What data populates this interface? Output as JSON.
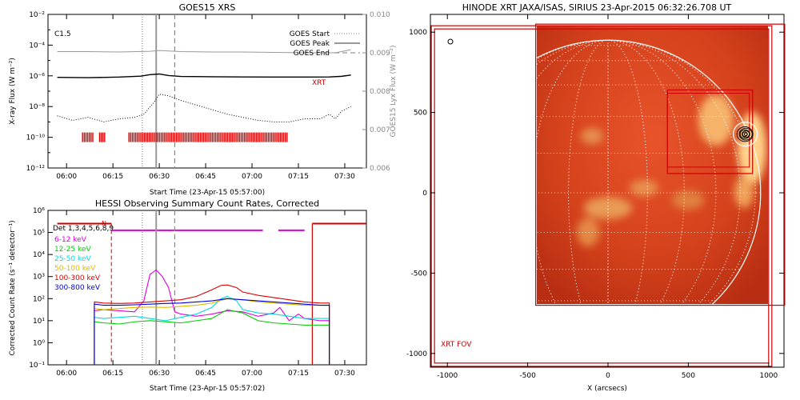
{
  "chart_data": [
    {
      "type": "line",
      "title": "GOES15 XRS",
      "xlabel": "Start Time (23-Apr-15 05:57:00)",
      "ylabel": "X-ray Flux (W m⁻²)",
      "ylabel_right": "GOES15 Lyx Flux (W m⁻²)",
      "x_ticks": [
        "06:00",
        "06:15",
        "06:30",
        "06:45",
        "07:00",
        "07:15",
        "07:30"
      ],
      "y_ticks": [
        "10⁻²",
        "10⁻⁴",
        "10⁻⁶",
        "10⁻⁸",
        "10⁻¹⁰",
        "10⁻¹²"
      ],
      "y_ticks_right": [
        "0.010",
        "0.009",
        "0.008",
        "0.007",
        "0.006"
      ],
      "class_label": "C1.5",
      "xrt_label": "XRT",
      "legend": [
        {
          "label": "GOES Start",
          "style": "dotted"
        },
        {
          "label": "GOES Peak",
          "style": "solid"
        },
        {
          "label": "GOES End",
          "style": "dashed"
        }
      ],
      "vlines_min": {
        "start": 27.5,
        "peak": 32.0,
        "end": 38.0
      },
      "series": [
        {
          "key": "lyx",
          "color": "#999999",
          "x": [
            0,
            10,
            20,
            30,
            33,
            40,
            50,
            60,
            70,
            80,
            90,
            95
          ],
          "y": [
            0.00903,
            0.00903,
            0.00902,
            0.00904,
            0.00906,
            0.00903,
            0.00902,
            0.00902,
            0.00901,
            0.009,
            0.009,
            0.00908
          ]
        },
        {
          "key": "long",
          "color": "#000000",
          "x": [
            0,
            10,
            20,
            27,
            30,
            33,
            36,
            40,
            50,
            60,
            70,
            80,
            88,
            92,
            95
          ],
          "y": [
            -6.1,
            -6.12,
            -6.08,
            -6.02,
            -5.92,
            -5.88,
            -5.98,
            -6.04,
            -6.06,
            -6.07,
            -6.08,
            -6.08,
            -6.07,
            -6.03,
            -5.95
          ]
        },
        {
          "key": "short",
          "color": "#000000",
          "x": [
            0,
            5,
            10,
            15,
            20,
            25,
            28,
            31,
            33,
            36,
            40,
            45,
            50,
            55,
            60,
            65,
            70,
            75,
            80,
            85,
            88,
            90,
            92,
            95
          ],
          "y": [
            -8.6,
            -8.9,
            -8.7,
            -9.0,
            -8.8,
            -8.7,
            -8.5,
            -7.8,
            -7.2,
            -7.3,
            -7.6,
            -7.9,
            -8.2,
            -8.5,
            -8.7,
            -8.9,
            -9.0,
            -9.0,
            -8.8,
            -8.8,
            -8.5,
            -8.8,
            -8.3,
            -8.0
          ]
        }
      ],
      "xrt_intervals_min": [
        [
          8,
          11.5
        ],
        [
          13.5,
          15.5
        ],
        [
          23,
          74.5
        ]
      ]
    },
    {
      "type": "line",
      "title": "HESSI Observing Summary Count Rates, Corrected",
      "xlabel": "Start Time (23-Apr-15 05:57:02)",
      "ylabel": "Corrected Count Rate (s⁻¹ detector⁻¹)",
      "x_ticks": [
        "06:00",
        "06:15",
        "06:30",
        "06:45",
        "07:00",
        "07:15",
        "07:30"
      ],
      "y_ticks": [
        "10⁶",
        "10⁵",
        "10⁴",
        "10³",
        "10²",
        "10¹",
        "10⁰",
        "10⁻¹"
      ],
      "detectors_label": "Det 1,3,4,5,6,8,9",
      "n_label": "N",
      "vlines_min": {
        "start": 27.5,
        "peak": 32.0,
        "end": 38.0,
        "red_dashed": 17.5,
        "red_solid": 82.5
      },
      "saa_segments_min": [
        [
          0,
          17.5
        ],
        [
          82.5,
          100
        ]
      ],
      "night_segments_min": [
        [
          17.5,
          66.5
        ],
        [
          71.5,
          80
        ]
      ],
      "series": [
        {
          "name": "6-12 keV",
          "color": "#dd00dd",
          "x": [
            12,
            15,
            20,
            25,
            28,
            30,
            32,
            34,
            36,
            38,
            40,
            45,
            50,
            55,
            60,
            65,
            70,
            72,
            75,
            78,
            80,
            85,
            88
          ],
          "y": [
            1.45,
            1.5,
            1.45,
            1.4,
            1.9,
            3.1,
            3.3,
            3.0,
            2.5,
            1.4,
            1.3,
            1.2,
            1.3,
            1.45,
            1.4,
            1.2,
            1.35,
            1.6,
            1.0,
            1.3,
            1.1,
            1.0,
            1.0
          ]
        },
        {
          "name": "12-25 keV",
          "color": "#00cc00",
          "x": [
            12,
            15,
            20,
            25,
            30,
            35,
            40,
            45,
            50,
            55,
            60,
            65,
            70,
            75,
            80,
            85,
            88
          ],
          "y": [
            0.95,
            0.9,
            0.85,
            0.95,
            1.0,
            0.95,
            0.9,
            1.0,
            1.1,
            1.5,
            1.35,
            1.0,
            0.9,
            0.85,
            0.8,
            0.8,
            0.8
          ]
        },
        {
          "name": "25-50 keV",
          "color": "#00dddd",
          "x": [
            12,
            15,
            20,
            25,
            30,
            35,
            40,
            45,
            50,
            53,
            55,
            58,
            60,
            65,
            70,
            75,
            80,
            85,
            88
          ],
          "y": [
            1.15,
            1.1,
            1.15,
            1.2,
            1.1,
            1.0,
            1.15,
            1.3,
            1.6,
            2.0,
            2.1,
            1.9,
            1.5,
            1.35,
            1.3,
            1.2,
            1.1,
            1.1,
            1.1
          ]
        },
        {
          "name": "50-100 keV",
          "color": "#ddbb00",
          "x": [
            12,
            15,
            20,
            25,
            30,
            35,
            40,
            45,
            50,
            55,
            60,
            65,
            70,
            75,
            80,
            85,
            88
          ],
          "y": [
            1.55,
            1.5,
            1.55,
            1.6,
            1.62,
            1.6,
            1.65,
            1.7,
            1.8,
            2.0,
            1.95,
            1.85,
            1.8,
            1.75,
            1.7,
            1.7,
            1.7
          ]
        },
        {
          "name": "100-300 keV",
          "color": "#dd0000",
          "x": [
            12,
            15,
            20,
            25,
            30,
            35,
            40,
            45,
            50,
            53,
            55,
            58,
            60,
            65,
            70,
            75,
            80,
            85,
            88
          ],
          "y": [
            1.85,
            1.8,
            1.78,
            1.8,
            1.85,
            1.9,
            1.95,
            2.1,
            2.4,
            2.6,
            2.62,
            2.5,
            2.3,
            2.15,
            2.05,
            1.95,
            1.85,
            1.8,
            1.8
          ]
        },
        {
          "name": "300-800 keV",
          "color": "#0000dd",
          "x": [
            12,
            15,
            20,
            25,
            30,
            35,
            40,
            45,
            50,
            55,
            60,
            65,
            70,
            75,
            80,
            85,
            88
          ],
          "y": [
            1.75,
            1.7,
            1.7,
            1.72,
            1.75,
            1.78,
            1.8,
            1.85,
            1.9,
            2.0,
            1.95,
            1.9,
            1.85,
            1.8,
            1.75,
            1.7,
            1.7
          ]
        }
      ],
      "x_window_min": [
        12,
        88
      ]
    },
    {
      "type": "image",
      "title": "HINODE XRT JAXA/ISAS, SIRIUS 23-Apr-2015 06:32:26.708 UT",
      "xlabel": "X (arcsecs)",
      "x_ticks": [
        "-1000",
        "-500",
        "0",
        "500",
        "1000"
      ],
      "y_ticks": [
        "1000",
        "500",
        "0",
        "-500",
        "-1000"
      ],
      "fov_label": "XRT FOV",
      "image_extent_arcsec": {
        "x": [
          -450,
          1100
        ],
        "y": [
          -700,
          1050
        ]
      },
      "fov_arcsec": {
        "x": [
          -1100,
          1020
        ],
        "y": [
          -1080,
          1040
        ]
      },
      "solar_radius_arcsec": 950,
      "zoom_box_arcsec": {
        "x": [
          370,
          900
        ],
        "y": [
          120,
          640
        ]
      },
      "zoom_box_inner_arcsec": {
        "x": [
          370,
          880
        ],
        "y": [
          160,
          620
        ]
      },
      "source_center_arcsec": [
        855,
        365
      ]
    }
  ]
}
